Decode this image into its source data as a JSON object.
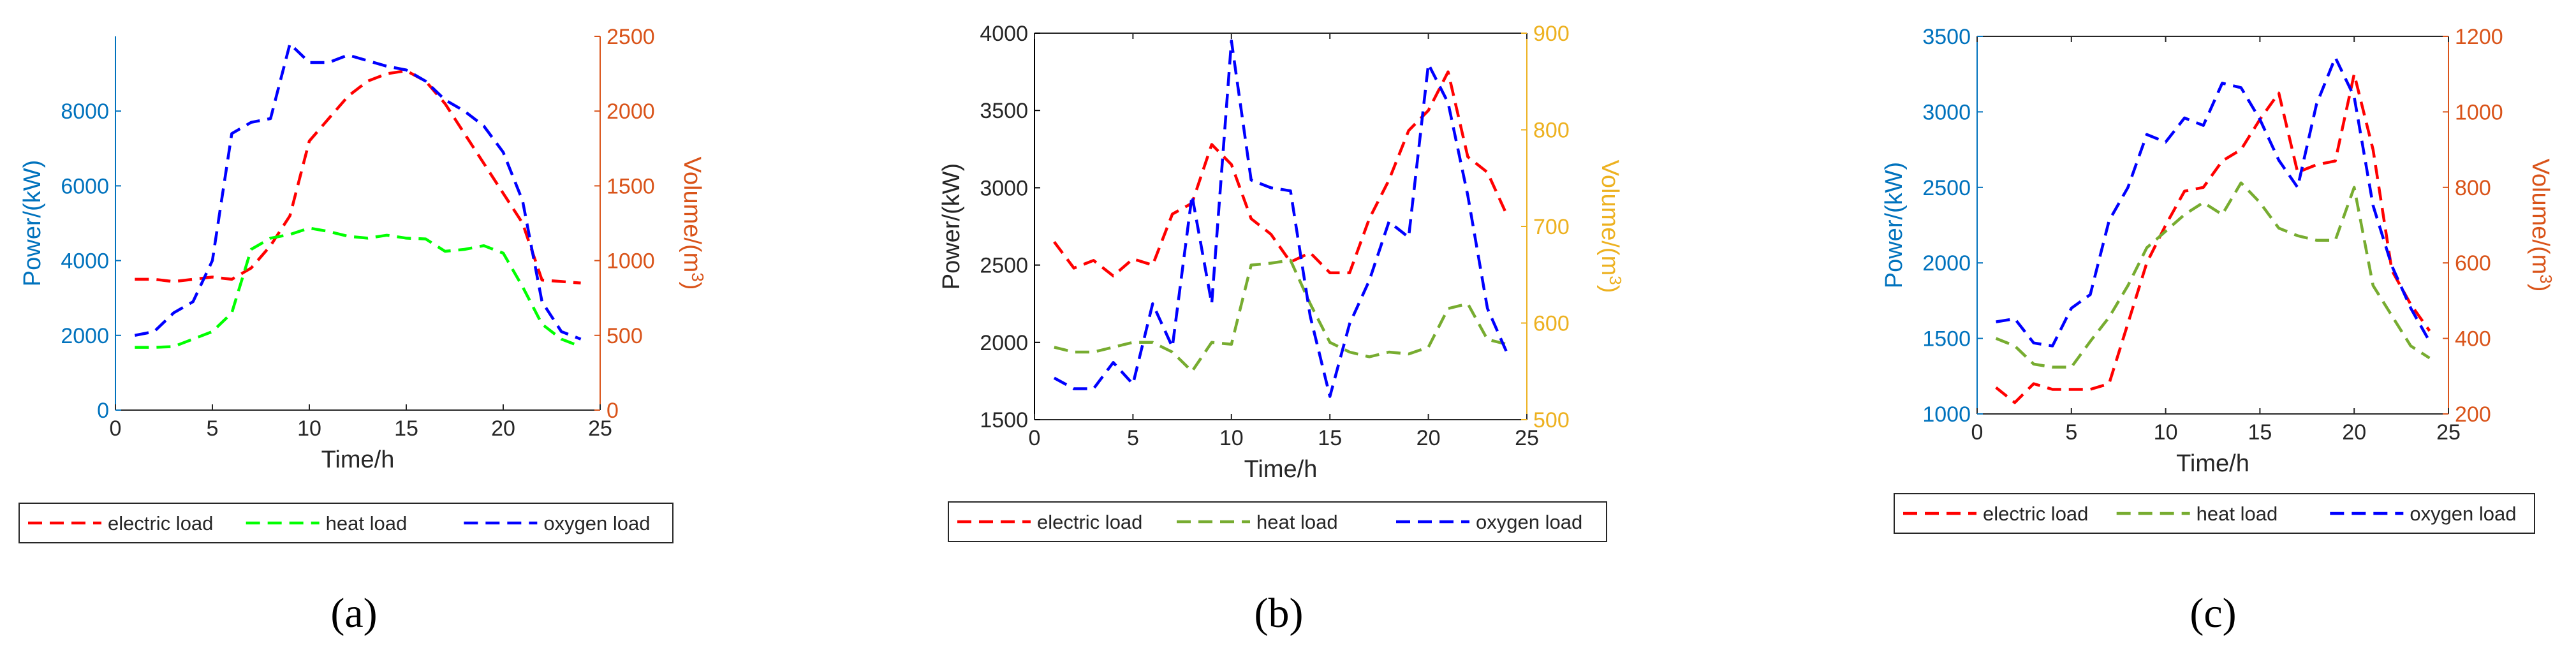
{
  "chart_data": [
    {
      "type": "line",
      "panel_label": "(a)",
      "xlabel": "Time/h",
      "ylabel_left": "Power/(kW)",
      "ylabel_right": "Volume/(m³)",
      "ylabel_right_parts": [
        "Volume/(m",
        "3",
        ")"
      ],
      "x_ticks": [
        "0",
        "5",
        "10",
        "15",
        "20",
        "25"
      ],
      "x_tick_values": [
        0,
        5,
        10,
        15,
        20,
        25
      ],
      "xlim": [
        0,
        25
      ],
      "left_ylim": [
        0,
        10000
      ],
      "left_ticks": [
        "0",
        "2000",
        "4000",
        "6000",
        "8000"
      ],
      "left_tick_values": [
        0,
        2000,
        4000,
        6000,
        8000
      ],
      "left_axis_color": "#0072BD",
      "right_ylim": [
        0,
        2500
      ],
      "right_ticks": [
        "0",
        "500",
        "1000",
        "1500",
        "2000",
        "2500"
      ],
      "right_tick_values": [
        0,
        500,
        1000,
        1500,
        2000,
        2500
      ],
      "right_axis_color": "#D95319",
      "box": false,
      "legend": "bottom",
      "x": [
        1,
        2,
        3,
        4,
        5,
        6,
        7,
        8,
        9,
        10,
        11,
        12,
        13,
        14,
        15,
        16,
        17,
        18,
        19,
        20,
        21,
        22,
        23,
        24
      ],
      "series": [
        {
          "name": "electric load",
          "color": "#FF0000",
          "axis": "right",
          "values": [
            875,
            875,
            860,
            875,
            890,
            875,
            950,
            1100,
            1300,
            1800,
            1950,
            2100,
            2200,
            2250,
            2270,
            2200,
            2050,
            1850,
            1650,
            1450,
            1250,
            870,
            860,
            850
          ]
        },
        {
          "name": "heat load",
          "color": "#00FF00",
          "axis": "left",
          "values": [
            1680,
            1680,
            1700,
            1900,
            2100,
            2600,
            4300,
            4600,
            4700,
            4870,
            4780,
            4650,
            4600,
            4680,
            4600,
            4580,
            4250,
            4300,
            4400,
            4200,
            3300,
            2300,
            1900,
            1700
          ]
        },
        {
          "name": "oxygen load",
          "color": "#0000FF",
          "axis": "left",
          "values": [
            2000,
            2100,
            2600,
            2900,
            4000,
            7400,
            7700,
            7800,
            9800,
            9300,
            9300,
            9500,
            9350,
            9200,
            9100,
            8800,
            8300,
            8000,
            7600,
            6900,
            5600,
            2900,
            2100,
            1900
          ]
        }
      ]
    },
    {
      "type": "line",
      "panel_label": "(b)",
      "xlabel": "Time/h",
      "ylabel_left": "Power/(kW)",
      "ylabel_right": "Volume/(m³)",
      "ylabel_right_parts": [
        "Volume/(m",
        "3",
        ")"
      ],
      "x_ticks": [
        "0",
        "5",
        "10",
        "15",
        "20",
        "25"
      ],
      "x_tick_values": [
        0,
        5,
        10,
        15,
        20,
        25
      ],
      "xlim": [
        0,
        25
      ],
      "left_ylim": [
        1500,
        4000
      ],
      "left_ticks": [
        "1500",
        "2000",
        "2500",
        "3000",
        "3500",
        "4000"
      ],
      "left_tick_values": [
        1500,
        2000,
        2500,
        3000,
        3500,
        4000
      ],
      "left_axis_color": "#000000",
      "right_ylim": [
        500,
        900
      ],
      "right_ticks": [
        "500",
        "600",
        "700",
        "800",
        "900"
      ],
      "right_tick_values": [
        500,
        600,
        700,
        800,
        900
      ],
      "right_axis_color": "#EDB120",
      "box": true,
      "legend": "bottom",
      "x": [
        1,
        2,
        3,
        4,
        5,
        6,
        7,
        8,
        9,
        10,
        11,
        12,
        13,
        14,
        15,
        16,
        17,
        18,
        19,
        20,
        21,
        22,
        23,
        24
      ],
      "series": [
        {
          "name": "electric load",
          "color": "#FF0000",
          "axis": "left",
          "values": [
            2650,
            2480,
            2530,
            2430,
            2540,
            2500,
            2830,
            2900,
            3280,
            3150,
            2800,
            2700,
            2520,
            2580,
            2450,
            2450,
            2800,
            3050,
            3370,
            3500,
            3750,
            3200,
            3100,
            2820
          ]
        },
        {
          "name": "heat load",
          "color": "#77AC30",
          "axis": "right",
          "values": [
            575,
            570,
            570,
            575,
            580,
            580,
            570,
            550,
            580,
            578,
            660,
            662,
            665,
            620,
            580,
            570,
            565,
            570,
            568,
            575,
            615,
            620,
            583,
            578
          ]
        },
        {
          "name": "oxygen load",
          "color": "#0000FF",
          "axis": "left",
          "values": [
            1770,
            1700,
            1700,
            1870,
            1730,
            2250,
            1970,
            2950,
            2250,
            3950,
            3050,
            3000,
            2980,
            2170,
            1650,
            2120,
            2400,
            2780,
            2680,
            3800,
            3550,
            2950,
            2220,
            1930
          ]
        }
      ]
    },
    {
      "type": "line",
      "panel_label": "(c)",
      "xlabel": "Time/h",
      "ylabel_left": "Power/(kW)",
      "ylabel_right": "Volume/(m³)",
      "ylabel_right_parts": [
        "Volume/(m",
        "3",
        ")"
      ],
      "x_ticks": [
        "0",
        "5",
        "10",
        "15",
        "20",
        "25"
      ],
      "x_tick_values": [
        0,
        5,
        10,
        15,
        20,
        25
      ],
      "xlim": [
        0,
        25
      ],
      "left_ylim": [
        1000,
        3500
      ],
      "left_ticks": [
        "1000",
        "1500",
        "2000",
        "2500",
        "3000",
        "3500"
      ],
      "left_tick_values": [
        1000,
        1500,
        2000,
        2500,
        3000,
        3500
      ],
      "left_axis_color": "#0072BD",
      "right_ylim": [
        200,
        1200
      ],
      "right_ticks": [
        "200",
        "400",
        "600",
        "800",
        "1000",
        "1200"
      ],
      "right_tick_values": [
        200,
        400,
        600,
        800,
        1000,
        1200
      ],
      "right_axis_color": "#D95319",
      "box": true,
      "legend": "bottom",
      "x": [
        1,
        2,
        3,
        4,
        5,
        6,
        7,
        8,
        9,
        10,
        11,
        12,
        13,
        14,
        15,
        16,
        17,
        18,
        19,
        20,
        21,
        22,
        23,
        24
      ],
      "series": [
        {
          "name": "electric load",
          "color": "#FF0000",
          "axis": "right",
          "values": [
            270,
            230,
            280,
            265,
            265,
            265,
            280,
            440,
            600,
            700,
            790,
            800,
            870,
            900,
            980,
            1050,
            840,
            860,
            870,
            1100,
            900,
            580,
            490,
            420
          ]
        },
        {
          "name": "heat load",
          "color": "#77AC30",
          "axis": "left",
          "values": [
            1500,
            1450,
            1330,
            1310,
            1310,
            1480,
            1640,
            1850,
            2100,
            2210,
            2320,
            2400,
            2320,
            2530,
            2400,
            2230,
            2180,
            2150,
            2150,
            2500,
            1850,
            1650,
            1450,
            1370
          ]
        },
        {
          "name": "oxygen load",
          "color": "#0000FF",
          "axis": "left",
          "values": [
            1610,
            1630,
            1470,
            1450,
            1700,
            1790,
            2280,
            2500,
            2850,
            2800,
            2960,
            2910,
            3190,
            3160,
            2950,
            2680,
            2500,
            3050,
            3360,
            3100,
            2380,
            1980,
            1700,
            1480
          ]
        }
      ]
    }
  ]
}
